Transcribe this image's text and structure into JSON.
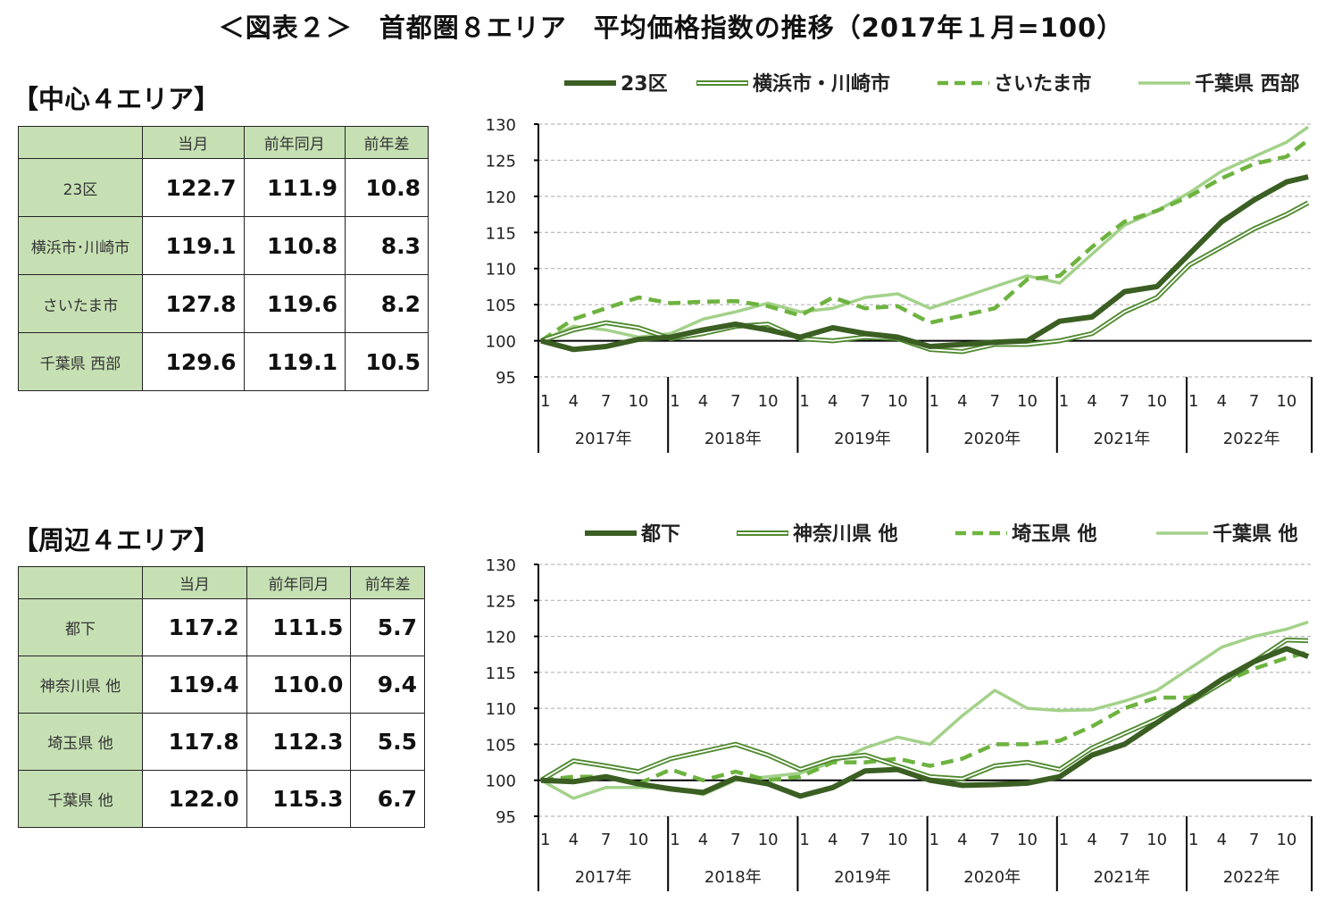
{
  "title": "＜図表２＞　首都圏８エリア　平均価格指数の推移（2017年１月=100）",
  "sections": [
    {
      "heading": "【中心４エリア】",
      "table": {
        "headers": [
          "",
          "当月",
          "前年同月",
          "前年差"
        ],
        "rows": [
          {
            "label": "23区",
            "current": "122.7",
            "prev_year": "111.9",
            "diff": "10.8"
          },
          {
            "label": "横浜市･川崎市",
            "current": "119.1",
            "prev_year": "110.8",
            "diff": "8.3"
          },
          {
            "label": "さいたま市",
            "current": "127.8",
            "prev_year": "119.6",
            "diff": "8.2"
          },
          {
            "label": "千葉県 西部",
            "current": "129.6",
            "prev_year": "119.1",
            "diff": "10.5"
          }
        ]
      }
    },
    {
      "heading": "【周辺４エリア】",
      "table": {
        "headers": [
          "",
          "当月",
          "前年同月",
          "前年差"
        ],
        "rows": [
          {
            "label": "都下",
            "current": "117.2",
            "prev_year": "111.5",
            "diff": "5.7"
          },
          {
            "label": "神奈川県 他",
            "current": "119.4",
            "prev_year": "110.0",
            "diff": "9.4"
          },
          {
            "label": "埼玉県 他",
            "current": "117.8",
            "prev_year": "112.3",
            "diff": "5.5"
          },
          {
            "label": "千葉県 他",
            "current": "122.0",
            "prev_year": "115.3",
            "diff": "6.7"
          }
        ]
      }
    }
  ],
  "chart_data": [
    {
      "type": "line",
      "ylim": [
        95,
        130
      ],
      "yticks": [
        95,
        100,
        105,
        110,
        115,
        120,
        125,
        130
      ],
      "baseline": 100,
      "grid": true,
      "legend_position": "top",
      "month_ticks": [
        "1",
        "4",
        "7",
        "10"
      ],
      "years": [
        "2017年",
        "2018年",
        "2019年",
        "2020年",
        "2021年",
        "2022年"
      ],
      "x": [
        "2017-01",
        "2017-04",
        "2017-07",
        "2017-10",
        "2018-01",
        "2018-04",
        "2018-07",
        "2018-10",
        "2019-01",
        "2019-04",
        "2019-07",
        "2019-10",
        "2020-01",
        "2020-04",
        "2020-07",
        "2020-10",
        "2021-01",
        "2021-04",
        "2021-07",
        "2021-10",
        "2022-01",
        "2022-04",
        "2022-07",
        "2022-10",
        "2022-12"
      ],
      "series": [
        {
          "name": "23区",
          "style": "thick",
          "color": "#3b5e23",
          "values": [
            100,
            98.8,
            99.2,
            100.2,
            100.5,
            101.5,
            102.3,
            101.5,
            100.5,
            101.8,
            101,
            100.5,
            99.2,
            99.5,
            99.8,
            100,
            102.7,
            103.3,
            106.8,
            107.5,
            112,
            116.5,
            119.5,
            122,
            122.7
          ]
        },
        {
          "name": "横浜市・川崎市",
          "style": "double",
          "color": "#4f8a2f",
          "values": [
            100,
            101.5,
            102.5,
            101.8,
            100.3,
            101,
            102,
            102.3,
            100.3,
            100,
            100.5,
            100.3,
            98.8,
            98.5,
            99.5,
            99.5,
            100,
            101,
            104,
            106,
            110.5,
            113,
            115.5,
            117.5,
            119.1
          ]
        },
        {
          "name": "さいたま市",
          "style": "dashed",
          "color": "#6db33f",
          "values": [
            100,
            103,
            104.5,
            106,
            105.2,
            105.4,
            105.5,
            104.8,
            103.5,
            106,
            104.5,
            104.8,
            102.5,
            103.5,
            104.5,
            108.5,
            109,
            113,
            116.5,
            118,
            120,
            122.5,
            124.5,
            125.5,
            127.8
          ]
        },
        {
          "name": "千葉県 西部",
          "style": "light",
          "color": "#a3d18a",
          "values": [
            100,
            102,
            101.5,
            100.5,
            101,
            103,
            104,
            105.2,
            104,
            104.5,
            106,
            106.5,
            104.5,
            106,
            107.5,
            109,
            108,
            112,
            116,
            118,
            120.5,
            123.5,
            125.5,
            127.5,
            129.6
          ]
        }
      ]
    },
    {
      "type": "line",
      "ylim": [
        95,
        130
      ],
      "yticks": [
        95,
        100,
        105,
        110,
        115,
        120,
        125,
        130
      ],
      "baseline": 100,
      "grid": true,
      "legend_position": "top",
      "month_ticks": [
        "1",
        "4",
        "7",
        "10"
      ],
      "years": [
        "2017年",
        "2018年",
        "2019年",
        "2020年",
        "2021年",
        "2022年"
      ],
      "x": [
        "2017-01",
        "2017-04",
        "2017-07",
        "2017-10",
        "2018-01",
        "2018-04",
        "2018-07",
        "2018-10",
        "2019-01",
        "2019-04",
        "2019-07",
        "2019-10",
        "2020-01",
        "2020-04",
        "2020-07",
        "2020-10",
        "2021-01",
        "2021-04",
        "2021-07",
        "2021-10",
        "2022-01",
        "2022-04",
        "2022-07",
        "2022-10",
        "2022-12"
      ],
      "series": [
        {
          "name": "都下",
          "style": "thick",
          "color": "#3b5e23",
          "values": [
            100,
            99.8,
            100.5,
            99.5,
            98.8,
            98.3,
            100.3,
            99.5,
            97.8,
            99,
            101.3,
            101.5,
            100,
            99.3,
            99.4,
            99.6,
            100.5,
            103.5,
            105,
            108,
            111,
            114,
            116.5,
            118.3,
            117.2
          ]
        },
        {
          "name": "神奈川県 他",
          "style": "double",
          "color": "#4f8a2f",
          "values": [
            100,
            102.7,
            102,
            101.2,
            103,
            104,
            105,
            103.5,
            101.5,
            103,
            103.5,
            102,
            100.5,
            100.2,
            102,
            102.5,
            101.5,
            104.5,
            106.5,
            108.5,
            110.8,
            113.5,
            116.5,
            119.5,
            119.4
          ]
        },
        {
          "name": "埼玉県 他",
          "style": "dashed",
          "color": "#6db33f",
          "values": [
            100,
            100.5,
            100.5,
            99.5,
            101.5,
            100,
            101.2,
            100,
            100.5,
            102.5,
            102.5,
            103,
            102,
            103,
            105,
            105,
            105.5,
            107.5,
            110,
            111.5,
            111.5,
            113.5,
            115.5,
            117,
            117.8
          ]
        },
        {
          "name": "千葉県 他",
          "style": "light",
          "color": "#a3d18a",
          "values": [
            100,
            97.5,
            99,
            99,
            99,
            98,
            100,
            100.5,
            101,
            102.5,
            104.5,
            106,
            105,
            109,
            112.5,
            110,
            109.7,
            109.8,
            111,
            112.5,
            115.5,
            118.5,
            120,
            121,
            122.0
          ]
        }
      ]
    }
  ]
}
